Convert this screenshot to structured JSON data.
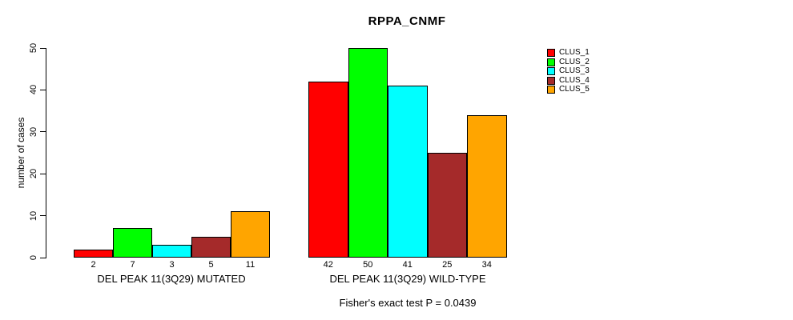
{
  "chart_data": {
    "type": "bar",
    "title": "RPPA_CNMF",
    "xlabel": "",
    "ylabel": "number of cases",
    "ylim": [
      0,
      50
    ],
    "yticks": [
      0,
      10,
      20,
      30,
      40,
      50
    ],
    "grid": false,
    "legend_position": "top-right",
    "categories": [
      "DEL PEAK 11(3Q29) MUTATED",
      "DEL PEAK 11(3Q29) WILD-TYPE"
    ],
    "series": [
      {
        "name": "CLUS_1",
        "color": "#FF0000",
        "values": [
          2,
          42
        ]
      },
      {
        "name": "CLUS_2",
        "color": "#00FF00",
        "values": [
          7,
          50
        ]
      },
      {
        "name": "CLUS_3",
        "color": "#00FFFF",
        "values": [
          3,
          41
        ]
      },
      {
        "name": "CLUS_4",
        "color": "#A52A2A",
        "values": [
          5,
          25
        ]
      },
      {
        "name": "CLUS_5",
        "color": "#FFA500",
        "values": [
          11,
          34
        ]
      }
    ],
    "bar_value_labels": [
      [
        "2",
        "7",
        "3",
        "5",
        "11"
      ],
      [
        "42",
        "50",
        "41",
        "25",
        "34"
      ]
    ],
    "annotation": "Fisher's exact test P = 0.0439"
  }
}
